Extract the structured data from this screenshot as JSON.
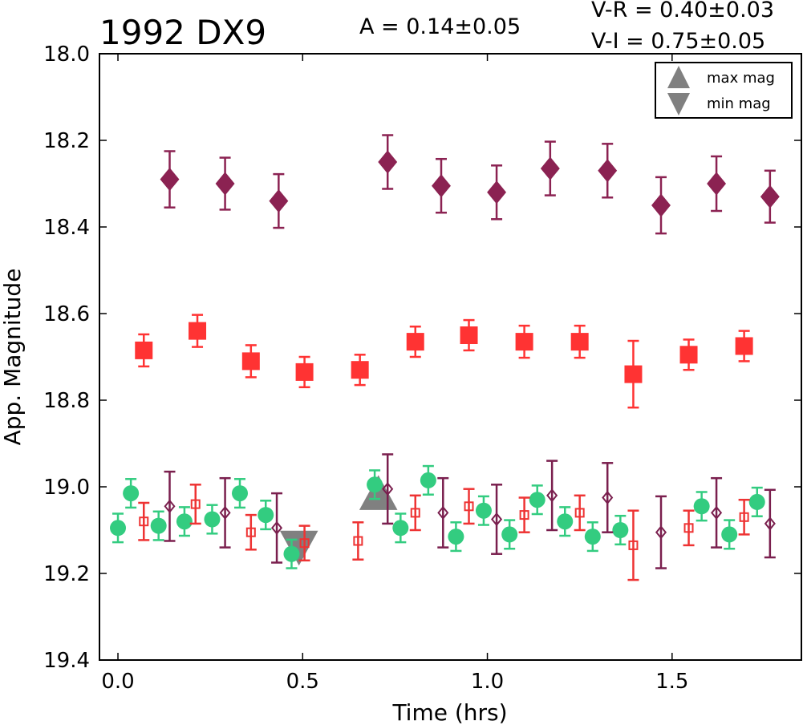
{
  "chart_data": {
    "type": "scatter",
    "title": "1992 DX9",
    "annotations": {
      "amplitude": "A  = 0.14±0.05",
      "v_r": "V-R = 0.40±0.03",
      "v_i": "V-I  = 0.75±0.05"
    },
    "xlabel": "Time (hrs)",
    "ylabel": "App. Magnitude",
    "xlim": [
      -0.05,
      1.85
    ],
    "ylim": [
      18.0,
      19.4
    ],
    "y_inverted": true,
    "xticks": [
      "0.0",
      "0.5",
      "1.0",
      "1.5"
    ],
    "xtick_values": [
      0.0,
      0.5,
      1.0,
      1.5
    ],
    "yticks": [
      "18.0",
      "18.2",
      "18.4",
      "18.6",
      "18.8",
      "19.0",
      "19.2",
      "19.4"
    ],
    "ytick_values": [
      18.0,
      18.2,
      18.4,
      18.6,
      18.8,
      19.0,
      19.2,
      19.4
    ],
    "grid": false,
    "legend_position": "top-right",
    "legend": [
      {
        "label": "max mag",
        "marker": "triangle-up",
        "color": "#808080"
      },
      {
        "label": "min mag",
        "marker": "triangle-down",
        "color": "#808080"
      }
    ],
    "series": [
      {
        "marker": "diamond",
        "filled": true,
        "color": "#8b2252",
        "points": [
          {
            "x": 0.14,
            "y": 18.29,
            "err": 0.065
          },
          {
            "x": 0.29,
            "y": 18.3,
            "err": 0.06
          },
          {
            "x": 0.435,
            "y": 18.34,
            "err": 0.062
          },
          {
            "x": 0.73,
            "y": 18.25,
            "err": 0.062
          },
          {
            "x": 0.875,
            "y": 18.305,
            "err": 0.062
          },
          {
            "x": 1.025,
            "y": 18.32,
            "err": 0.062
          },
          {
            "x": 1.17,
            "y": 18.265,
            "err": 0.062
          },
          {
            "x": 1.325,
            "y": 18.27,
            "err": 0.062
          },
          {
            "x": 1.47,
            "y": 18.35,
            "err": 0.065
          },
          {
            "x": 1.62,
            "y": 18.3,
            "err": 0.063
          },
          {
            "x": 1.765,
            "y": 18.33,
            "err": 0.06
          }
        ]
      },
      {
        "marker": "square",
        "filled": true,
        "color": "#ff3333",
        "points": [
          {
            "x": 0.07,
            "y": 18.685,
            "err": 0.037
          },
          {
            "x": 0.215,
            "y": 18.64,
            "err": 0.037
          },
          {
            "x": 0.36,
            "y": 18.71,
            "err": 0.037
          },
          {
            "x": 0.505,
            "y": 18.735,
            "err": 0.035
          },
          {
            "x": 0.655,
            "y": 18.73,
            "err": 0.035
          },
          {
            "x": 0.805,
            "y": 18.665,
            "err": 0.035
          },
          {
            "x": 0.95,
            "y": 18.65,
            "err": 0.035
          },
          {
            "x": 1.1,
            "y": 18.665,
            "err": 0.037
          },
          {
            "x": 1.25,
            "y": 18.665,
            "err": 0.037
          },
          {
            "x": 1.395,
            "y": 18.74,
            "err": 0.077
          },
          {
            "x": 1.545,
            "y": 18.695,
            "err": 0.035
          },
          {
            "x": 1.695,
            "y": 18.675,
            "err": 0.035
          }
        ]
      },
      {
        "marker": "circle",
        "filled": true,
        "color": "#33cc80",
        "points": [
          {
            "x": 0.0,
            "y": 19.095,
            "err": 0.033
          },
          {
            "x": 0.035,
            "y": 19.015,
            "err": 0.033
          },
          {
            "x": 0.11,
            "y": 19.09,
            "err": 0.033
          },
          {
            "x": 0.18,
            "y": 19.08,
            "err": 0.033
          },
          {
            "x": 0.255,
            "y": 19.075,
            "err": 0.033
          },
          {
            "x": 0.33,
            "y": 19.015,
            "err": 0.033
          },
          {
            "x": 0.4,
            "y": 19.065,
            "err": 0.033
          },
          {
            "x": 0.47,
            "y": 19.155,
            "err": 0.033
          },
          {
            "x": 0.695,
            "y": 18.995,
            "err": 0.033
          },
          {
            "x": 0.765,
            "y": 19.095,
            "err": 0.033
          },
          {
            "x": 0.84,
            "y": 18.985,
            "err": 0.033
          },
          {
            "x": 0.915,
            "y": 19.115,
            "err": 0.033
          },
          {
            "x": 0.99,
            "y": 19.055,
            "err": 0.033
          },
          {
            "x": 1.06,
            "y": 19.11,
            "err": 0.033
          },
          {
            "x": 1.135,
            "y": 19.03,
            "err": 0.033
          },
          {
            "x": 1.21,
            "y": 19.08,
            "err": 0.033
          },
          {
            "x": 1.285,
            "y": 19.115,
            "err": 0.033
          },
          {
            "x": 1.36,
            "y": 19.1,
            "err": 0.033
          },
          {
            "x": 1.58,
            "y": 19.045,
            "err": 0.033
          },
          {
            "x": 1.655,
            "y": 19.11,
            "err": 0.033
          },
          {
            "x": 1.73,
            "y": 19.035,
            "err": 0.033
          }
        ]
      },
      {
        "marker": "square",
        "filled": false,
        "color": "#ee3333",
        "points": [
          {
            "x": 0.07,
            "y": 19.08,
            "err": 0.043
          },
          {
            "x": 0.21,
            "y": 19.04,
            "err": 0.045
          },
          {
            "x": 0.36,
            "y": 19.105,
            "err": 0.04
          },
          {
            "x": 0.505,
            "y": 19.13,
            "err": 0.04
          },
          {
            "x": 0.65,
            "y": 19.125,
            "err": 0.043
          },
          {
            "x": 0.805,
            "y": 19.06,
            "err": 0.04
          },
          {
            "x": 0.95,
            "y": 19.045,
            "err": 0.04
          },
          {
            "x": 1.1,
            "y": 19.065,
            "err": 0.04
          },
          {
            "x": 1.25,
            "y": 19.06,
            "err": 0.04
          },
          {
            "x": 1.395,
            "y": 19.135,
            "err": 0.08
          },
          {
            "x": 1.545,
            "y": 19.095,
            "err": 0.04
          },
          {
            "x": 1.695,
            "y": 19.07,
            "err": 0.04
          }
        ]
      },
      {
        "marker": "diamond",
        "filled": false,
        "color": "#7a1f4e",
        "points": [
          {
            "x": 0.14,
            "y": 19.045,
            "err": 0.08
          },
          {
            "x": 0.29,
            "y": 19.06,
            "err": 0.08
          },
          {
            "x": 0.43,
            "y": 19.095,
            "err": 0.08
          },
          {
            "x": 0.73,
            "y": 19.005,
            "err": 0.08
          },
          {
            "x": 0.88,
            "y": 19.06,
            "err": 0.08
          },
          {
            "x": 1.025,
            "y": 19.075,
            "err": 0.08
          },
          {
            "x": 1.175,
            "y": 19.02,
            "err": 0.08
          },
          {
            "x": 1.325,
            "y": 19.025,
            "err": 0.08
          },
          {
            "x": 1.47,
            "y": 19.105,
            "err": 0.083
          },
          {
            "x": 1.62,
            "y": 19.06,
            "err": 0.08
          },
          {
            "x": 1.765,
            "y": 19.085,
            "err": 0.078
          }
        ]
      }
    ],
    "markers": [
      {
        "label": "min mag",
        "marker": "triangle-down",
        "x": 0.49,
        "y": 19.13,
        "color": "#808080"
      },
      {
        "label": "max mag",
        "marker": "triangle-up",
        "x": 0.705,
        "y": 19.025,
        "color": "#808080"
      }
    ]
  }
}
